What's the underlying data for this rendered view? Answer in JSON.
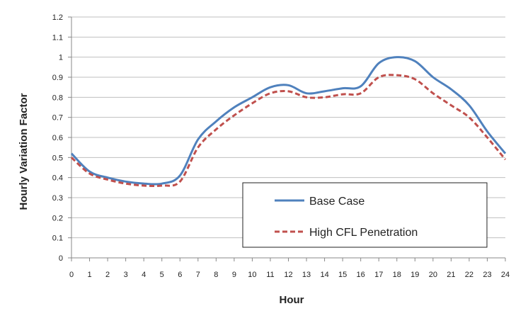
{
  "chart_data": {
    "type": "line",
    "xlabel": "Hour",
    "ylabel": "Hourly Variation Factor",
    "xlim": [
      0,
      24
    ],
    "ylim": [
      0,
      1.2
    ],
    "x_ticks": [
      "0",
      "1",
      "2",
      "3",
      "4",
      "5",
      "6",
      "7",
      "8",
      "9",
      "10",
      "11",
      "12",
      "13",
      "14",
      "15",
      "16",
      "17",
      "18",
      "19",
      "20",
      "21",
      "22",
      "23",
      "24"
    ],
    "y_ticks": [
      "0",
      "0.1",
      "0.2",
      "0.3",
      "0.4",
      "0.5",
      "0.6",
      "0.7",
      "0.8",
      "0.9",
      "1",
      "1.1",
      "1.2"
    ],
    "grid": "horizontal",
    "legend_position": "bottom-right inside plot",
    "x": [
      0,
      1,
      2,
      3,
      4,
      5,
      6,
      7,
      8,
      9,
      10,
      11,
      12,
      13,
      14,
      15,
      16,
      17,
      18,
      19,
      20,
      21,
      22,
      23,
      24
    ],
    "series": [
      {
        "name": "Base Case",
        "color": "#4f81bd",
        "style": "solid",
        "values": [
          0.52,
          0.43,
          0.4,
          0.38,
          0.37,
          0.37,
          0.41,
          0.59,
          0.68,
          0.75,
          0.8,
          0.85,
          0.86,
          0.82,
          0.83,
          0.845,
          0.855,
          0.97,
          1.0,
          0.98,
          0.9,
          0.84,
          0.76,
          0.63,
          0.52
        ]
      },
      {
        "name": "High CFL Penetration",
        "color": "#c0504d",
        "style": "dashed",
        "values": [
          0.5,
          0.42,
          0.39,
          0.37,
          0.36,
          0.36,
          0.38,
          0.55,
          0.64,
          0.71,
          0.77,
          0.82,
          0.83,
          0.8,
          0.8,
          0.815,
          0.82,
          0.9,
          0.91,
          0.89,
          0.82,
          0.76,
          0.7,
          0.6,
          0.49
        ]
      }
    ]
  }
}
